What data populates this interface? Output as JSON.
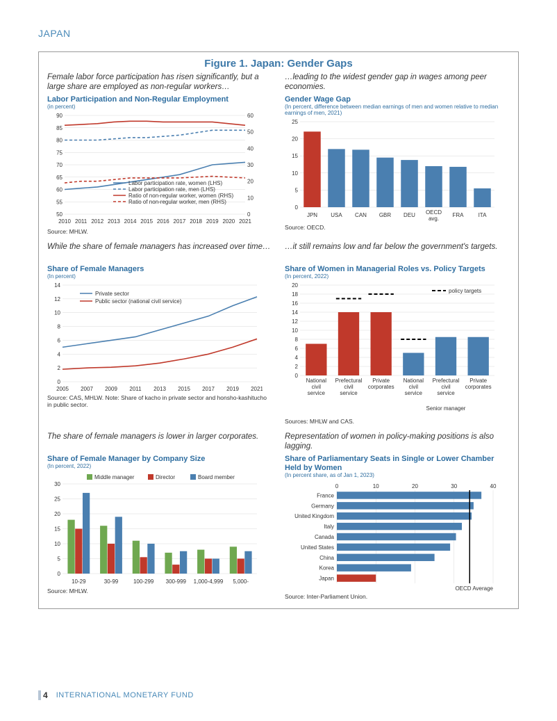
{
  "header": "JAPAN",
  "figure_title": "Figure 1. Japan: Gender Gaps",
  "footer": {
    "page": "4",
    "org": "INTERNATIONAL MONETARY FUND"
  },
  "colors": {
    "blue": "#4a7fb0",
    "red": "#c0392b",
    "dark_red": "#b03028",
    "light_blue": "#6fa3cc",
    "green": "#6fa850",
    "grid": "#d8d8d8",
    "title": "#2f6ea0",
    "text": "#333333"
  },
  "chart1": {
    "caption": "Female labor force participation has risen significantly, but a large share are employed as non-regular workers…",
    "title": "Labor Participation and Non-Regular Employment",
    "subtitle": "(in percent)",
    "source": "Source: MHLW.",
    "years": [
      2010,
      2011,
      2012,
      2013,
      2014,
      2015,
      2016,
      2017,
      2018,
      2019,
      2020,
      2021
    ],
    "ylim_left": [
      50,
      90
    ],
    "ytick_left": [
      50,
      55,
      60,
      65,
      70,
      75,
      80,
      85,
      90
    ],
    "ylim_right": [
      0,
      60
    ],
    "ytick_right": [
      0,
      10,
      20,
      30,
      40,
      50,
      60
    ],
    "series": {
      "women_part": {
        "label": "Labor participation rate, women (LHS)",
        "color": "#4a7fb0",
        "dash": false,
        "values": [
          60,
          60.5,
          61,
          62,
          63,
          64,
          65,
          66,
          68,
          70,
          70.5,
          71
        ]
      },
      "men_part": {
        "label": "Labor participation rate, men (LHS)",
        "color": "#4a7fb0",
        "dash": true,
        "values": [
          80,
          80,
          80,
          80.5,
          81,
          81,
          81.5,
          82,
          83,
          84,
          84,
          84
        ]
      },
      "women_nr": {
        "label": "Ratio of non-regular worker, women (RHS)",
        "color": "#c0392b",
        "dash": false,
        "values": [
          54,
          54.5,
          55,
          56,
          56.5,
          56.5,
          56,
          56,
          56,
          56,
          55,
          54
        ]
      },
      "men_nr": {
        "label": "Ratio of non-regular worker, men (RHS)",
        "color": "#c0392b",
        "dash": true,
        "values": [
          19,
          20,
          20,
          21,
          22,
          22,
          22,
          22,
          22.5,
          23,
          22.5,
          22
        ]
      }
    }
  },
  "chart2": {
    "caption": "…leading to the widest gender gap in wages among peer economies.",
    "title": "Gender Wage Gap",
    "subtitle": "(In percent, difference between median earnings of men and women relative to median earnings of men, 2021)",
    "source": "Source: OECD.",
    "ylim": [
      0,
      25
    ],
    "yticks": [
      0,
      5,
      10,
      15,
      20,
      25
    ],
    "categories": [
      "JPN",
      "USA",
      "CAN",
      "GBR",
      "DEU",
      "OECD avg.",
      "FRA",
      "ITA"
    ],
    "values": [
      22.1,
      17,
      16.8,
      14.5,
      13.8,
      12,
      11.8,
      5.5
    ],
    "highlight_index": 0
  },
  "chart3": {
    "caption": "While the share of female managers has increased over time…",
    "title": "Share of Female Managers",
    "subtitle": "(In percent)",
    "source": "Source: CAS, MHLW. Note: Share of kacho in private sector and honsho-kashitucho in public sector.",
    "years": [
      2005,
      2007,
      2009,
      2011,
      2013,
      2015,
      2017,
      2019,
      2021
    ],
    "ylim": [
      0,
      14
    ],
    "yticks": [
      0,
      2,
      4,
      6,
      8,
      10,
      12,
      14
    ],
    "series": {
      "private": {
        "label": "Private sector",
        "color": "#4a7fb0",
        "values": [
          5,
          5.5,
          6,
          6.5,
          7.5,
          8.5,
          9.5,
          11,
          12.3
        ]
      },
      "public": {
        "label": "Public sector (national civil service)",
        "color": "#c0392b",
        "values": [
          1.8,
          2,
          2.1,
          2.3,
          2.7,
          3.3,
          4,
          5,
          6.2
        ]
      }
    }
  },
  "chart4": {
    "caption": "…it still remains low and far below the government's targets.",
    "title": "Share of Women in Managerial Roles vs. Policy Targets",
    "subtitle": "(In percent, 2022)",
    "source": "Sources: MHLW and CAS.",
    "ylim": [
      0,
      20
    ],
    "yticks": [
      0,
      2,
      4,
      6,
      8,
      10,
      12,
      14,
      16,
      18,
      20
    ],
    "legend_target": "policy targets",
    "sub_label": "Senior manager",
    "groups": [
      {
        "label": "National civil service",
        "value": 7,
        "target": null,
        "color": "#c0392b"
      },
      {
        "label": "Prefectural civil service",
        "value": 14,
        "target": 17,
        "color": "#c0392b"
      },
      {
        "label": "Private corporates",
        "value": 14,
        "target": 18,
        "color": "#c0392b"
      },
      {
        "label": "National civil service",
        "value": 5,
        "target": 8,
        "color": "#4a7fb0"
      },
      {
        "label": "Prefectural civil service",
        "value": 8.5,
        "target": null,
        "color": "#4a7fb0"
      },
      {
        "label": "Private corporates",
        "value": 8.5,
        "target": null,
        "color": "#4a7fb0"
      }
    ]
  },
  "chart5": {
    "caption": "The share of female managers is lower in larger corporates.",
    "title": "Share of Female Manager by Company Size",
    "subtitle": "(In percent, 2022)",
    "source": "Source: MHLW.",
    "ylim": [
      0,
      30
    ],
    "yticks": [
      0,
      5,
      10,
      15,
      20,
      25,
      30
    ],
    "categories": [
      "10-29",
      "30-99",
      "100-299",
      "300-999",
      "1,000-4,999",
      "5,000-"
    ],
    "series": [
      {
        "label": "Middle manager",
        "color": "#6fa850",
        "values": [
          18,
          16,
          11,
          7,
          8,
          9
        ]
      },
      {
        "label": "Director",
        "color": "#c0392b",
        "values": [
          15,
          10,
          5.5,
          3,
          5,
          5
        ]
      },
      {
        "label": "Board member",
        "color": "#4a7fb0",
        "values": [
          27,
          19,
          10,
          7.5,
          5,
          7.5
        ]
      }
    ]
  },
  "chart6": {
    "caption": "Representation of women in policy-making positions is also lagging.",
    "title": "Share of Parliamentary Seats in Single or Lower Chamber Held by Women",
    "subtitle": "(In percent share, as of Jan 1, 2023)",
    "source": "Source: Inter-Parliament Union.",
    "xlim": [
      0,
      40
    ],
    "xticks": [
      0,
      10,
      20,
      30,
      40
    ],
    "oecd_label": "OECD Average",
    "oecd_value": 34,
    "countries": [
      {
        "label": "France",
        "value": 37,
        "color": "#4a7fb0"
      },
      {
        "label": "Germany",
        "value": 35,
        "color": "#4a7fb0"
      },
      {
        "label": "United Kingdom",
        "value": 34.5,
        "color": "#4a7fb0"
      },
      {
        "label": "Italy",
        "value": 32,
        "color": "#4a7fb0"
      },
      {
        "label": "Canada",
        "value": 30.5,
        "color": "#4a7fb0"
      },
      {
        "label": "United States",
        "value": 29,
        "color": "#4a7fb0"
      },
      {
        "label": "China",
        "value": 25,
        "color": "#4a7fb0"
      },
      {
        "label": "Korea",
        "value": 19,
        "color": "#4a7fb0"
      },
      {
        "label": "Japan",
        "value": 10,
        "color": "#c0392b"
      }
    ]
  }
}
